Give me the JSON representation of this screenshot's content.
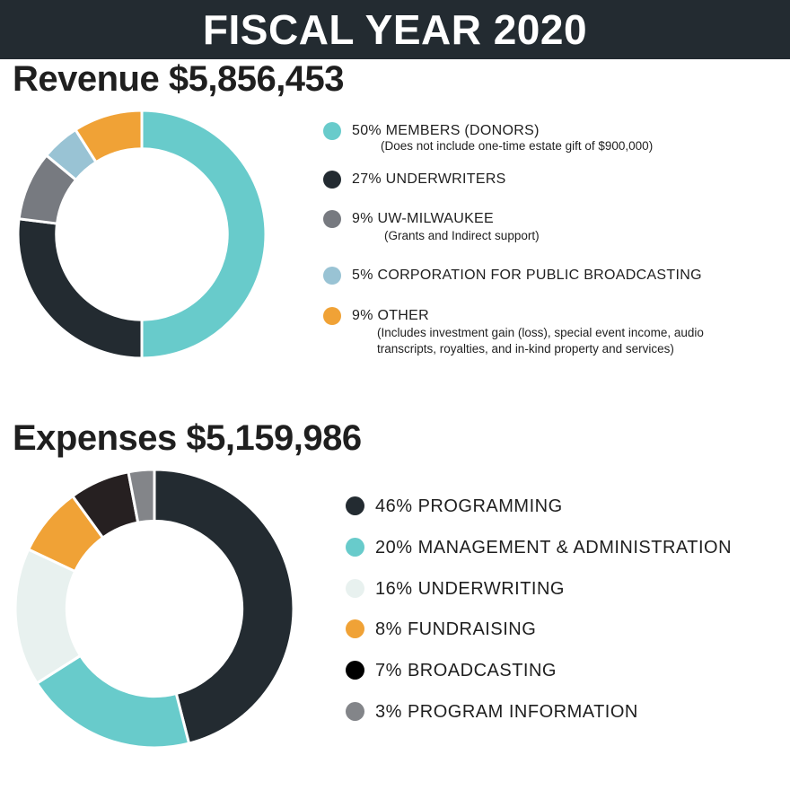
{
  "header": {
    "title": "FISCAL YEAR 2020"
  },
  "colors": {
    "teal": "#68cbcb",
    "navy": "#232b31",
    "gray": "#777a80",
    "light_blue": "#99c3d4",
    "orange": "#f0a236",
    "pale": "#e8f1ef",
    "near_black": "#262021",
    "mid_gray": "#838589",
    "black": "#000000"
  },
  "chart_data": [
    {
      "type": "pie",
      "title": "Revenue $5,856,453",
      "categories": [
        "MEMBERS (DONORS)",
        "UNDERWRITERS",
        "UW-MILWAUKEE",
        "CORPORATION FOR PUBLIC BROADCASTING",
        "OTHER"
      ],
      "values": [
        50,
        27,
        9,
        5,
        9
      ],
      "unit": "%",
      "legend_labels": [
        "50% MEMBERS (DONORS)",
        "27% UNDERWRITERS",
        "9% UW-MILWAUKEE",
        "5% CORPORATION FOR PUBLIC BROADCASTING",
        "9% OTHER"
      ],
      "notes": [
        [
          "(Does not include one-time estate gift of $900,000)"
        ],
        [],
        [
          "(Grants and Indirect support)"
        ],
        [],
        [
          "(Includes investment gain (loss), special event income, audio",
          "transcripts, royalties, and in-kind property and services)"
        ]
      ],
      "colors": [
        "#68cbcb",
        "#232b31",
        "#777a80",
        "#99c3d4",
        "#f0a236"
      ],
      "legend_colors": [
        "#68cbcb",
        "#232b31",
        "#777a80",
        "#99c3d4",
        "#f0a236"
      ],
      "legend": "right"
    },
    {
      "type": "pie",
      "title": "Expenses $5,159,986",
      "categories": [
        "PROGRAMMING",
        "MANAGEMENT & ADMINISTRATION",
        "UNDERWRITING",
        "FUNDRAISING",
        "BROADCASTING",
        "PROGRAM INFORMATION"
      ],
      "values": [
        46,
        20,
        16,
        8,
        7,
        3
      ],
      "unit": "%",
      "legend_labels": [
        "46% PROGRAMMING",
        "20% MANAGEMENT & ADMINISTRATION",
        "16% UNDERWRITING",
        "8% FUNDRAISING",
        "7% BROADCASTING",
        "3% PROGRAM INFORMATION"
      ],
      "colors": [
        "#232b31",
        "#68cbcb",
        "#e8f1ef",
        "#f0a236",
        "#262021",
        "#838589"
      ],
      "legend_colors": [
        "#232b31",
        "#68cbcb",
        "#e8f1ef",
        "#f0a236",
        "#000000",
        "#838589"
      ],
      "legend": "right"
    }
  ]
}
